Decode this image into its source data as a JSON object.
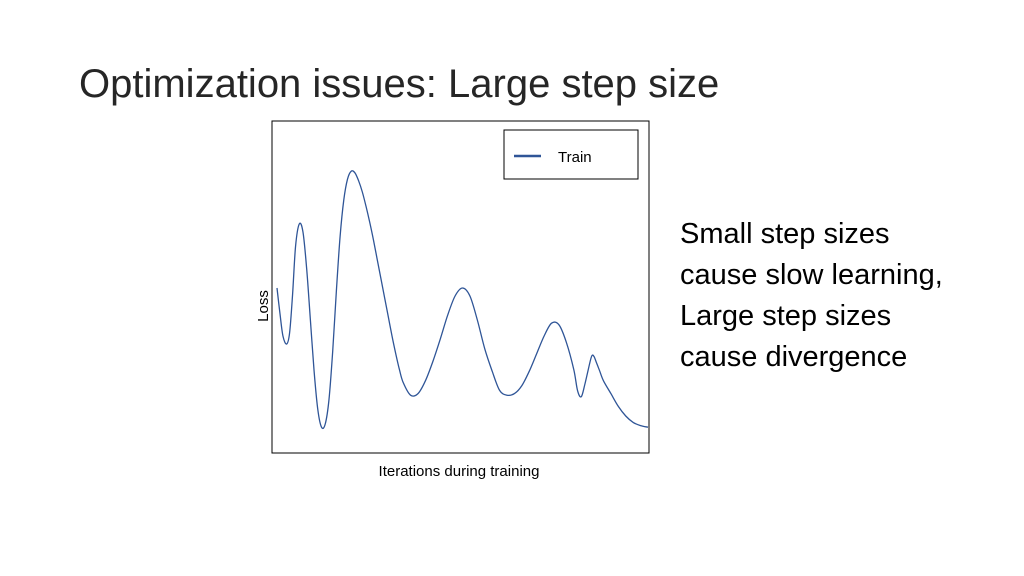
{
  "slide": {
    "title": "Optimization issues: Large step size",
    "body_lines": [
      "Small step sizes",
      "cause slow learning,",
      "Large step sizes",
      "cause divergence"
    ]
  },
  "chart_data": {
    "type": "line",
    "title": "",
    "xlabel": "Iterations during training",
    "ylabel": "Loss",
    "xlim": [
      0,
      100
    ],
    "ylim": [
      0,
      100
    ],
    "xticks": [],
    "yticks": [],
    "grid": false,
    "legend": {
      "position": "top-right",
      "entries": [
        "Train"
      ]
    },
    "series": [
      {
        "name": "Train",
        "color": "#2f5597",
        "x": [
          0,
          0.8,
          1.6,
          2.6,
          3.4,
          4.2,
          5.0,
          6.0,
          7.0,
          8.0,
          9.0,
          10.0,
          11.0,
          12.0,
          13.0,
          14.0,
          15.0,
          16.0,
          17.0,
          18.0,
          19.0,
          20.0,
          21.0,
          22.0,
          23.0,
          24.0,
          25.0,
          26.0,
          27.0,
          28.0,
          29.0,
          30.0,
          31.0,
          32.0,
          33.0,
          34.0,
          36.0,
          38.0,
          40.0,
          42.0,
          44.0,
          46.0,
          48.0,
          50.0,
          52.0,
          54.0,
          56.0,
          58.0,
          60.0,
          62.0,
          64.0,
          66.0,
          68.0,
          70.0,
          72.0,
          74.0,
          76.0,
          78.0,
          80.0,
          81.0,
          82.0,
          83.0,
          84.5,
          85.0,
          85.5,
          86.0,
          86.5,
          87.0,
          88.0,
          90.0,
          92.0,
          94.0,
          96.0,
          98.0,
          100.0
        ],
        "y": [
          50.0,
          42.0,
          35.0,
          32.5,
          36.0,
          48.0,
          63.0,
          70.0,
          67.5,
          56.0,
          40.0,
          24.0,
          12.0,
          6.5,
          7.5,
          15.0,
          30.0,
          49.0,
          66.0,
          77.5,
          84.0,
          86.5,
          86.0,
          83.5,
          80.0,
          75.5,
          70.5,
          65.0,
          59.0,
          53.0,
          47.0,
          41.0,
          35.0,
          29.5,
          24.5,
          20.5,
          16.5,
          17.0,
          21.0,
          27.0,
          34.0,
          41.5,
          47.5,
          50.0,
          47.5,
          40.0,
          31.0,
          24.0,
          18.0,
          16.5,
          17.0,
          19.5,
          24.0,
          29.5,
          35.0,
          39.0,
          38.5,
          33.0,
          24.5,
          18.0,
          16.0,
          20.0,
          27.5,
          29.0,
          28.5,
          27.0,
          25.5,
          24.0,
          21.0,
          17.0,
          13.0,
          10.0,
          8.0,
          7.0,
          6.5
        ]
      }
    ]
  }
}
